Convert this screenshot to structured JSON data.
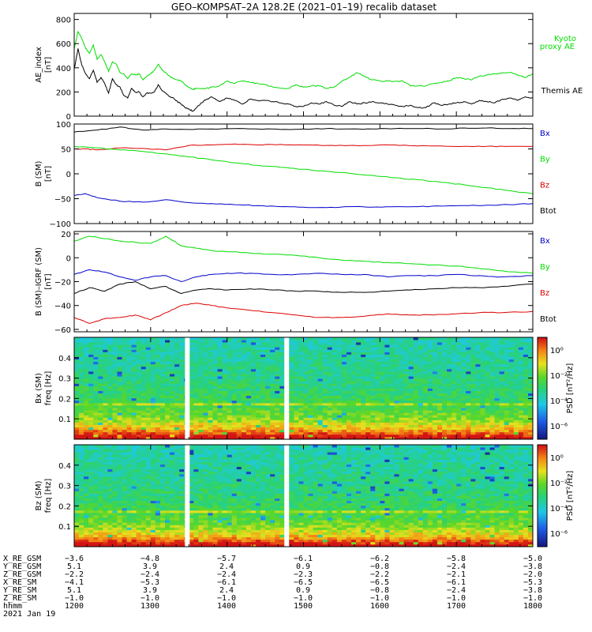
{
  "title": "GEO–KOMPSAT–2A 128.2E (2021–01–19) recalib dataset",
  "colors": {
    "green": "#00dd00",
    "black": "#000000",
    "red": "#dd0000",
    "blue": "#0000cc"
  },
  "chart_data": [
    {
      "type": "line",
      "ylabel_lines": [
        "AE_index",
        "[nT]"
      ],
      "xlim": [
        1200,
        1800
      ],
      "ylim": [
        0,
        850
      ],
      "yticks": [
        0,
        200,
        400,
        600,
        800
      ],
      "legend": [
        {
          "name": "Kyoto",
          "color": "#00dd00"
        },
        {
          "name": "proxy AE",
          "color": "#00dd00"
        },
        {
          "name": "Themis AE",
          "color": "#000000"
        }
      ],
      "series": [
        {
          "name": "Kyoto proxy AE",
          "color": "#00dd00",
          "x": [
            1200,
            1205,
            1210,
            1215,
            1220,
            1225,
            1230,
            1235,
            1240,
            1245,
            1250,
            1255,
            1260,
            1265,
            1270,
            1275,
            1280,
            1285,
            1290,
            1295,
            1300,
            1305,
            1310,
            1315,
            1320,
            1325,
            1330,
            1335,
            1340,
            1345,
            1350,
            1355,
            1360,
            1370,
            1380,
            1390,
            1400,
            1410,
            1420,
            1430,
            1440,
            1450,
            1460,
            1470,
            1480,
            1490,
            1500,
            1510,
            1520,
            1530,
            1540,
            1550,
            1560,
            1570,
            1580,
            1590,
            1600,
            1610,
            1620,
            1630,
            1640,
            1650,
            1660,
            1670,
            1680,
            1690,
            1700,
            1710,
            1720,
            1730,
            1740,
            1750,
            1760,
            1770,
            1780,
            1790,
            1800
          ],
          "y": [
            560,
            700,
            640,
            560,
            520,
            590,
            470,
            510,
            450,
            370,
            450,
            430,
            360,
            350,
            310,
            350,
            340,
            350,
            300,
            330,
            350,
            380,
            430,
            380,
            360,
            330,
            310,
            300,
            290,
            260,
            240,
            220,
            230,
            225,
            240,
            250,
            290,
            270,
            290,
            280,
            270,
            260,
            240,
            230,
            230,
            260,
            240,
            250,
            250,
            230,
            240,
            290,
            320,
            360,
            330,
            300,
            290,
            290,
            290,
            290,
            250,
            250,
            250,
            270,
            280,
            290,
            320,
            310,
            300,
            330,
            340,
            350,
            360,
            360,
            340,
            320,
            350
          ]
        },
        {
          "name": "Themis AE",
          "color": "#000000",
          "x": [
            1200,
            1205,
            1210,
            1215,
            1220,
            1225,
            1230,
            1235,
            1240,
            1245,
            1250,
            1255,
            1260,
            1265,
            1270,
            1275,
            1280,
            1285,
            1290,
            1295,
            1300,
            1305,
            1310,
            1315,
            1320,
            1325,
            1330,
            1335,
            1340,
            1345,
            1350,
            1355,
            1360,
            1370,
            1380,
            1390,
            1400,
            1410,
            1420,
            1430,
            1440,
            1450,
            1460,
            1470,
            1480,
            1490,
            1500,
            1510,
            1520,
            1530,
            1540,
            1550,
            1560,
            1570,
            1580,
            1590,
            1600,
            1610,
            1620,
            1630,
            1640,
            1650,
            1660,
            1670,
            1680,
            1690,
            1700,
            1710,
            1720,
            1730,
            1740,
            1750,
            1760,
            1770,
            1780,
            1790,
            1800
          ],
          "y": [
            390,
            560,
            420,
            350,
            310,
            380,
            280,
            320,
            270,
            190,
            310,
            260,
            240,
            170,
            150,
            230,
            200,
            200,
            160,
            190,
            190,
            200,
            260,
            210,
            190,
            160,
            150,
            120,
            100,
            70,
            60,
            40,
            70,
            130,
            160,
            120,
            150,
            130,
            100,
            140,
            130,
            130,
            120,
            110,
            100,
            80,
            80,
            110,
            100,
            120,
            90,
            80,
            120,
            100,
            110,
            120,
            110,
            100,
            90,
            80,
            90,
            70,
            70,
            110,
            90,
            100,
            110,
            120,
            100,
            130,
            120,
            110,
            140,
            150,
            130,
            160,
            150
          ]
        }
      ]
    },
    {
      "type": "line",
      "ylabel_lines": [
        "B (SM)",
        "[nT]"
      ],
      "xlim": [
        1200,
        1800
      ],
      "ylim": [
        -100,
        100
      ],
      "yticks": [
        -100,
        -50,
        0,
        50,
        100
      ],
      "legend": [
        {
          "name": "Bx",
          "color": "#0000cc"
        },
        {
          "name": "By",
          "color": "#00dd00"
        },
        {
          "name": "Bz",
          "color": "#dd0000"
        },
        {
          "name": "Btot",
          "color": "#000000"
        }
      ],
      "series": [
        {
          "name": "Btot",
          "color": "#000000",
          "x": [
            1200,
            1230,
            1260,
            1290,
            1320,
            1350,
            1380,
            1410,
            1440,
            1470,
            1500,
            1530,
            1560,
            1590,
            1620,
            1650,
            1680,
            1710,
            1740,
            1770,
            1800
          ],
          "y": [
            84,
            88,
            94,
            88,
            90,
            89,
            90,
            91,
            90,
            89,
            90,
            91,
            90,
            90,
            91,
            91,
            90,
            92,
            92,
            91,
            91
          ]
        },
        {
          "name": "Bz",
          "color": "#dd0000",
          "x": [
            1200,
            1215,
            1230,
            1260,
            1290,
            1320,
            1350,
            1380,
            1410,
            1440,
            1470,
            1500,
            1530,
            1560,
            1590,
            1620,
            1650,
            1680,
            1710,
            1740,
            1770,
            1800
          ],
          "y": [
            50,
            50,
            48,
            52,
            51,
            48,
            57,
            58,
            60,
            58,
            59,
            58,
            57,
            57,
            57,
            58,
            56,
            56,
            55,
            55,
            55,
            55
          ]
        },
        {
          "name": "By",
          "color": "#00dd00",
          "x": [
            1200,
            1230,
            1260,
            1290,
            1320,
            1350,
            1380,
            1410,
            1440,
            1470,
            1500,
            1530,
            1560,
            1590,
            1620,
            1650,
            1680,
            1710,
            1740,
            1770,
            1800
          ],
          "y": [
            55,
            52,
            48,
            45,
            40,
            34,
            28,
            22,
            17,
            13,
            9,
            5,
            1,
            -3,
            -8,
            -12,
            -17,
            -22,
            -28,
            -34,
            -40
          ]
        },
        {
          "name": "Bx",
          "color": "#0000cc",
          "x": [
            1200,
            1215,
            1230,
            1260,
            1290,
            1320,
            1350,
            1380,
            1410,
            1440,
            1470,
            1500,
            1530,
            1560,
            1590,
            1620,
            1650,
            1680,
            1710,
            1740,
            1770,
            1800
          ],
          "y": [
            -44,
            -40,
            -48,
            -55,
            -57,
            -52,
            -58,
            -60,
            -62,
            -64,
            -66,
            -67,
            -68,
            -66,
            -67,
            -66,
            -66,
            -65,
            -64,
            -63,
            -62,
            -60
          ]
        }
      ]
    },
    {
      "type": "line",
      "ylabel_lines": [
        "B (SM)–IGRF (SM)",
        "[nT]"
      ],
      "xlim": [
        1200,
        1800
      ],
      "ylim": [
        -62,
        22
      ],
      "yticks": [
        -60,
        -40,
        -20,
        0,
        20
      ],
      "legend": [
        {
          "name": "Bx",
          "color": "#0000cc"
        },
        {
          "name": "By",
          "color": "#00dd00"
        },
        {
          "name": "Bz",
          "color": "#dd0000"
        },
        {
          "name": "Btot",
          "color": "#000000"
        }
      ],
      "series": [
        {
          "name": "By",
          "color": "#00dd00",
          "x": [
            1200,
            1220,
            1240,
            1260,
            1280,
            1300,
            1320,
            1340,
            1360,
            1380,
            1400,
            1430,
            1460,
            1490,
            1520,
            1550,
            1580,
            1610,
            1640,
            1670,
            1700,
            1730,
            1760,
            1800
          ],
          "y": [
            14,
            18,
            16,
            14,
            13,
            12,
            18,
            10,
            8,
            6,
            5,
            4,
            3,
            2,
            0,
            -2,
            -3,
            -4,
            -5,
            -6,
            -7,
            -9,
            -11,
            -13
          ]
        },
        {
          "name": "Bx",
          "color": "#0000cc",
          "x": [
            1200,
            1220,
            1240,
            1260,
            1280,
            1300,
            1320,
            1340,
            1360,
            1380,
            1400,
            1430,
            1460,
            1490,
            1520,
            1550,
            1580,
            1610,
            1640,
            1670,
            1700,
            1730,
            1760,
            1800
          ],
          "y": [
            -14,
            -10,
            -12,
            -16,
            -19,
            -16,
            -15,
            -20,
            -16,
            -14,
            -13,
            -13,
            -14,
            -14,
            -13,
            -14,
            -14,
            -16,
            -15,
            -15,
            -14,
            -15,
            -16,
            -15
          ]
        },
        {
          "name": "Btot",
          "color": "#000000",
          "x": [
            1200,
            1220,
            1240,
            1260,
            1280,
            1300,
            1320,
            1340,
            1360,
            1380,
            1400,
            1430,
            1460,
            1490,
            1520,
            1550,
            1580,
            1610,
            1640,
            1670,
            1700,
            1730,
            1760,
            1800
          ],
          "y": [
            -30,
            -25,
            -28,
            -22,
            -20,
            -26,
            -24,
            -30,
            -27,
            -26,
            -27,
            -26,
            -27,
            -28,
            -28,
            -29,
            -29,
            -28,
            -27,
            -26,
            -25,
            -25,
            -24,
            -22
          ]
        },
        {
          "name": "Bz",
          "color": "#dd0000",
          "x": [
            1200,
            1220,
            1240,
            1260,
            1280,
            1300,
            1320,
            1340,
            1360,
            1380,
            1400,
            1430,
            1460,
            1490,
            1520,
            1550,
            1580,
            1610,
            1640,
            1670,
            1700,
            1730,
            1760,
            1800
          ],
          "y": [
            -50,
            -55,
            -51,
            -50,
            -48,
            -52,
            -46,
            -40,
            -38,
            -40,
            -42,
            -44,
            -46,
            -48,
            -50,
            -50,
            -49,
            -47,
            -48,
            -48,
            -47,
            -46,
            -46,
            -45
          ]
        }
      ]
    },
    {
      "type": "heatmap",
      "ylabel_lines": [
        "Bx (SM)",
        "freq [Hz]"
      ],
      "xlim": [
        1200,
        1800
      ],
      "ylim": [
        0,
        0.5
      ],
      "yticks": [
        0.1,
        0.2,
        0.3,
        0.4
      ],
      "data_gaps": [
        1348,
        1478
      ],
      "colorbar": {
        "label": "PSD [nT²/Hz]",
        "ticks": [
          "10⁰",
          "10⁻²",
          "10⁻⁴",
          "10⁻⁶"
        ]
      }
    },
    {
      "type": "heatmap",
      "ylabel_lines": [
        "Bz (SM)",
        "freq [Hz]"
      ],
      "xlim": [
        1200,
        1800
      ],
      "ylim": [
        0,
        0.5
      ],
      "yticks": [
        0.1,
        0.2,
        0.3,
        0.4
      ],
      "data_gaps": [
        1348,
        1478
      ],
      "colorbar": {
        "label": "PSD [nT²/Hz]",
        "ticks": [
          "10⁰",
          "10⁻²",
          "10⁻⁴",
          "10⁻⁶"
        ]
      }
    }
  ],
  "ephemeris": {
    "rows": [
      {
        "label": "X_RE_GSM",
        "values": [
          "−3.6",
          "−4.8",
          "−5.7",
          "−6.1",
          "−6.2",
          "−5.8",
          "−5.0"
        ]
      },
      {
        "label": "Y_RE_GSM",
        "values": [
          "5.1",
          "3.9",
          "2.4",
          "0.9",
          "−0.8",
          "−2.4",
          "−3.8"
        ]
      },
      {
        "label": "Z_RE_GSM",
        "values": [
          "−2.2",
          "−2.4",
          "−2.4",
          "−2.3",
          "−2.2",
          "−2.1",
          "−2.0"
        ]
      },
      {
        "label": "X_RE_SM",
        "values": [
          "−4.1",
          "−5.3",
          "−6.1",
          "−6.5",
          "−6.5",
          "−6.1",
          "−5.3"
        ]
      },
      {
        "label": "Y_RE_SM",
        "values": [
          "5.1",
          "3.9",
          "2.4",
          "0.9",
          "−0.8",
          "−2.4",
          "−3.8"
        ]
      },
      {
        "label": "Z_RE_SM",
        "values": [
          "−1.0",
          "−1.0",
          "−1.0",
          "−1.0",
          "−1.0",
          "−1.0",
          "−1.0"
        ]
      },
      {
        "label": "hhmm",
        "values": [
          "1200",
          "1300",
          "1400",
          "1500",
          "1600",
          "1700",
          "1800"
        ]
      }
    ],
    "date": "2021 Jan 19"
  }
}
